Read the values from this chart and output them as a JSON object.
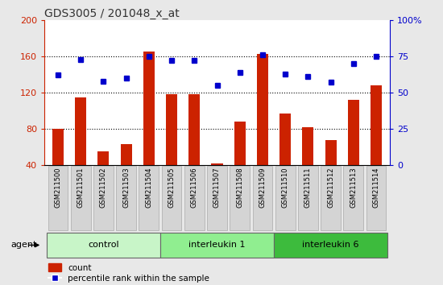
{
  "title": "GDS3005 / 201048_x_at",
  "samples": [
    "GSM211500",
    "GSM211501",
    "GSM211502",
    "GSM211503",
    "GSM211504",
    "GSM211505",
    "GSM211506",
    "GSM211507",
    "GSM211508",
    "GSM211509",
    "GSM211510",
    "GSM211511",
    "GSM211512",
    "GSM211513",
    "GSM211514"
  ],
  "counts": [
    80,
    115,
    55,
    63,
    165,
    118,
    118,
    42,
    88,
    163,
    97,
    82,
    68,
    112,
    128
  ],
  "percentiles": [
    62,
    73,
    58,
    60,
    75,
    72,
    72,
    55,
    64,
    76,
    63,
    61,
    57,
    70,
    75
  ],
  "groups": [
    {
      "label": "control",
      "start": 0,
      "end": 5,
      "color": "#c8f5c8"
    },
    {
      "label": "interleukin 1",
      "start": 5,
      "end": 10,
      "color": "#90ee90"
    },
    {
      "label": "interleukin 6",
      "start": 10,
      "end": 15,
      "color": "#3dbb3d"
    }
  ],
  "ylim_left": [
    40,
    200
  ],
  "ylim_right": [
    0,
    100
  ],
  "yticks_left": [
    40,
    80,
    120,
    160,
    200
  ],
  "yticks_right": [
    0,
    25,
    50,
    75,
    100
  ],
  "bar_color": "#cc2200",
  "dot_color": "#0000cc",
  "background_color": "#e8e8e8",
  "plot_bg": "#ffffff",
  "left_axis_color": "#cc2200",
  "right_axis_color": "#0000cc",
  "xlabel_agent": "agent",
  "grid_yticks": [
    80,
    120,
    160
  ]
}
